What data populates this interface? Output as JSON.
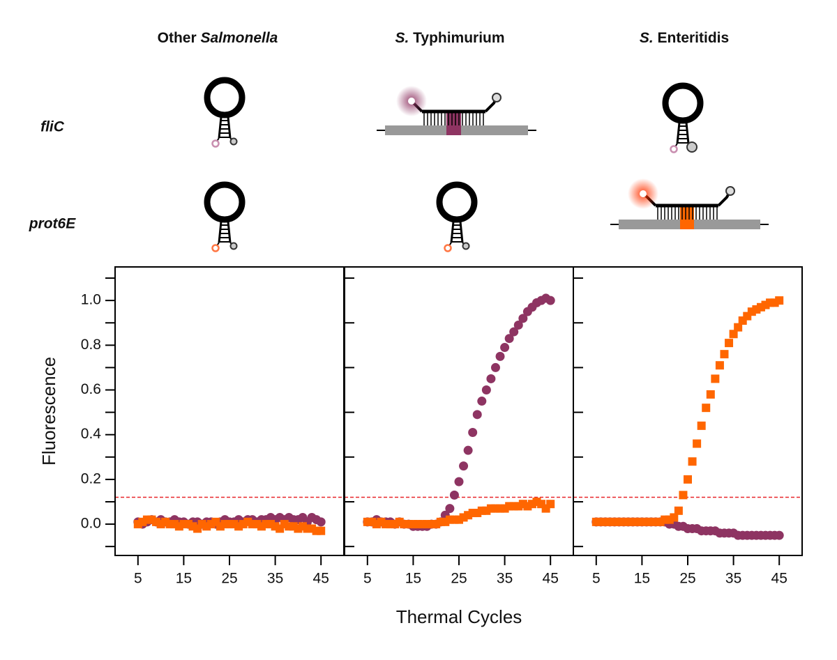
{
  "headers": [
    [
      {
        "text": "Other ",
        "italic": false
      },
      {
        "text": "Salmonella",
        "italic": true
      }
    ],
    [
      {
        "text": "S.",
        "italic": true
      },
      {
        "text": " Typhimurium",
        "italic": false
      }
    ],
    [
      {
        "text": "S.",
        "italic": true
      },
      {
        "text": " Enteritidis",
        "italic": false
      }
    ]
  ],
  "rows": [
    "fliC",
    "prot6E"
  ],
  "chart_data": [
    {
      "type": "scatter",
      "ylabel": "Fluorescence",
      "x": [
        5,
        6,
        7,
        8,
        9,
        10,
        11,
        12,
        13,
        14,
        15,
        16,
        17,
        18,
        19,
        20,
        21,
        22,
        23,
        24,
        25,
        26,
        27,
        28,
        29,
        30,
        31,
        32,
        33,
        34,
        35,
        36,
        37,
        38,
        39,
        40,
        41,
        42,
        43,
        44,
        45
      ],
      "xlim": [
        0,
        50
      ],
      "xticks": [
        5,
        15,
        25,
        35,
        45
      ],
      "ylim": [
        -0.14,
        1.15
      ],
      "yticks": [
        {
          "value": 0,
          "label": "0.0"
        },
        0.2,
        0.4,
        0.6,
        0.8,
        {
          "value": 1,
          "label": "1.0"
        }
      ],
      "minor_yticks": [
        -0.1,
        0.1,
        0.3,
        0.5,
        0.7,
        0.9,
        1.1
      ],
      "threshold": 0.12,
      "threshold_color": "#e8262a",
      "series": [
        {
          "color": "#8e3462",
          "marker": "circle",
          "values": [
            0.01,
            0.0,
            0.01,
            0.02,
            0.01,
            0.02,
            0.01,
            0.01,
            0.02,
            0.01,
            0.01,
            0.0,
            0.01,
            0.01,
            0.0,
            0.01,
            0.01,
            0.0,
            0.01,
            0.02,
            0.01,
            0.01,
            0.02,
            0.01,
            0.02,
            0.02,
            0.01,
            0.02,
            0.02,
            0.03,
            0.02,
            0.03,
            0.02,
            0.03,
            0.02,
            0.02,
            0.03,
            0.01,
            0.03,
            0.02,
            0.01
          ]
        },
        {
          "color": "#ff6600",
          "marker": "square",
          "values": [
            0.0,
            0.01,
            0.02,
            0.02,
            0.01,
            0.0,
            0.01,
            0.0,
            0.0,
            -0.01,
            0.0,
            0.0,
            -0.01,
            -0.02,
            0.0,
            -0.01,
            0.0,
            0.01,
            -0.01,
            0.0,
            0.0,
            0.0,
            -0.01,
            0.0,
            0.01,
            0.0,
            0.0,
            -0.01,
            0.0,
            0.0,
            -0.01,
            -0.02,
            0.0,
            -0.01,
            -0.01,
            -0.02,
            -0.01,
            -0.02,
            -0.02,
            -0.03,
            -0.03
          ]
        }
      ]
    },
    {
      "type": "scatter",
      "xlabel": "Thermal Cycles",
      "x": [
        5,
        6,
        7,
        8,
        9,
        10,
        11,
        12,
        13,
        14,
        15,
        16,
        17,
        18,
        19,
        20,
        21,
        22,
        23,
        24,
        25,
        26,
        27,
        28,
        29,
        30,
        31,
        32,
        33,
        34,
        35,
        36,
        37,
        38,
        39,
        40,
        41,
        42,
        43,
        44,
        45
      ],
      "xlim": [
        0,
        50
      ],
      "xticks": [
        5,
        15,
        25,
        35,
        45
      ],
      "ylim": [
        -0.14,
        1.15
      ],
      "minor_yticks": [
        -0.1,
        0.1,
        0.3,
        0.5,
        0.7,
        0.9,
        1.1
      ],
      "threshold": 0.12,
      "threshold_color": "#e8262a",
      "series": [
        {
          "color": "#8e3462",
          "marker": "circle",
          "values": [
            0.01,
            0.01,
            0.02,
            0.01,
            0.01,
            0.01,
            0.0,
            0.01,
            0.0,
            0.0,
            -0.01,
            -0.01,
            -0.01,
            -0.01,
            0.0,
            0.0,
            0.01,
            0.04,
            0.07,
            0.13,
            0.19,
            0.26,
            0.33,
            0.41,
            0.49,
            0.55,
            0.6,
            0.65,
            0.7,
            0.75,
            0.79,
            0.83,
            0.86,
            0.89,
            0.92,
            0.95,
            0.97,
            0.99,
            1.0,
            1.01,
            1.0
          ]
        },
        {
          "color": "#ff6600",
          "marker": "square",
          "values": [
            0.01,
            0.01,
            0.0,
            0.01,
            0.0,
            0.0,
            0.0,
            0.01,
            0.0,
            0.0,
            0.0,
            0.0,
            0.0,
            0.0,
            0.0,
            0.0,
            0.01,
            0.01,
            0.02,
            0.02,
            0.02,
            0.03,
            0.04,
            0.05,
            0.05,
            0.06,
            0.06,
            0.07,
            0.07,
            0.07,
            0.07,
            0.08,
            0.08,
            0.08,
            0.09,
            0.08,
            0.09,
            0.1,
            0.09,
            0.07,
            0.09
          ]
        }
      ]
    },
    {
      "type": "scatter",
      "x": [
        5,
        6,
        7,
        8,
        9,
        10,
        11,
        12,
        13,
        14,
        15,
        16,
        17,
        18,
        19,
        20,
        21,
        22,
        23,
        24,
        25,
        26,
        27,
        28,
        29,
        30,
        31,
        32,
        33,
        34,
        35,
        36,
        37,
        38,
        39,
        40,
        41,
        42,
        43,
        44,
        45
      ],
      "xlim": [
        0,
        50
      ],
      "xticks": [
        5,
        15,
        25,
        35,
        45
      ],
      "ylim": [
        -0.14,
        1.15
      ],
      "minor_yticks": [
        -0.1,
        0.1,
        0.3,
        0.5,
        0.7,
        0.9,
        1.1
      ],
      "threshold": 0.12,
      "threshold_color": "#e8262a",
      "series": [
        {
          "color": "#8e3462",
          "marker": "circle",
          "values": [
            0.01,
            0.01,
            0.01,
            0.01,
            0.01,
            0.01,
            0.01,
            0.01,
            0.01,
            0.01,
            0.01,
            0.01,
            0.01,
            0.01,
            0.01,
            0.01,
            0.0,
            0.0,
            -0.01,
            -0.01,
            -0.02,
            -0.02,
            -0.02,
            -0.03,
            -0.03,
            -0.03,
            -0.03,
            -0.04,
            -0.04,
            -0.04,
            -0.04,
            -0.05,
            -0.05,
            -0.05,
            -0.05,
            -0.05,
            -0.05,
            -0.05,
            -0.05,
            -0.05,
            -0.05
          ]
        },
        {
          "color": "#ff6600",
          "marker": "square",
          "values": [
            0.01,
            0.01,
            0.01,
            0.01,
            0.01,
            0.01,
            0.01,
            0.01,
            0.01,
            0.01,
            0.01,
            0.01,
            0.01,
            0.01,
            0.01,
            0.02,
            0.02,
            0.03,
            0.06,
            0.13,
            0.2,
            0.28,
            0.36,
            0.44,
            0.52,
            0.58,
            0.65,
            0.71,
            0.76,
            0.81,
            0.85,
            0.88,
            0.91,
            0.93,
            0.95,
            0.96,
            0.97,
            0.98,
            0.99,
            0.99,
            1.0
          ]
        }
      ]
    }
  ]
}
